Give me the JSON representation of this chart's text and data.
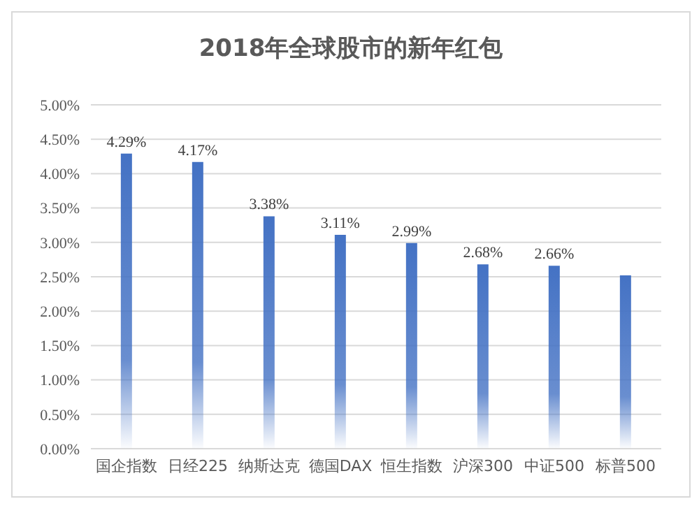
{
  "chart_data": {
    "type": "bar",
    "title": "2018年全球股市的新年红包",
    "categories": [
      "国企指数",
      "日经225",
      "纳斯达克",
      "德国DAX",
      "恒生指数",
      "沪深300",
      "中证500",
      "标普500"
    ],
    "values": [
      4.29,
      4.17,
      3.38,
      3.11,
      2.99,
      2.68,
      2.66,
      2.52
    ],
    "value_labels": [
      "4.29%",
      "4.17%",
      "3.38%",
      "3.11%",
      "2.99%",
      "2.68%",
      "2.66%",
      null
    ],
    "color": "#4472c4",
    "ylim": [
      0,
      5
    ],
    "yticks": [
      {
        "value": 0,
        "label": "0.00%"
      },
      {
        "value": 0.5,
        "label": "0.50%"
      },
      {
        "value": 1,
        "label": "1.00%"
      },
      {
        "value": 1.5,
        "label": "1.50%"
      },
      {
        "value": 2,
        "label": "2.00%"
      },
      {
        "value": 2.5,
        "label": "2.50%"
      },
      {
        "value": 3,
        "label": "3.00%"
      },
      {
        "value": 3.5,
        "label": "3.50%"
      },
      {
        "value": 4,
        "label": "4.00%"
      },
      {
        "value": 4.5,
        "label": "4.50%"
      },
      {
        "value": 5,
        "label": "5.00%"
      }
    ],
    "grid": "y"
  }
}
